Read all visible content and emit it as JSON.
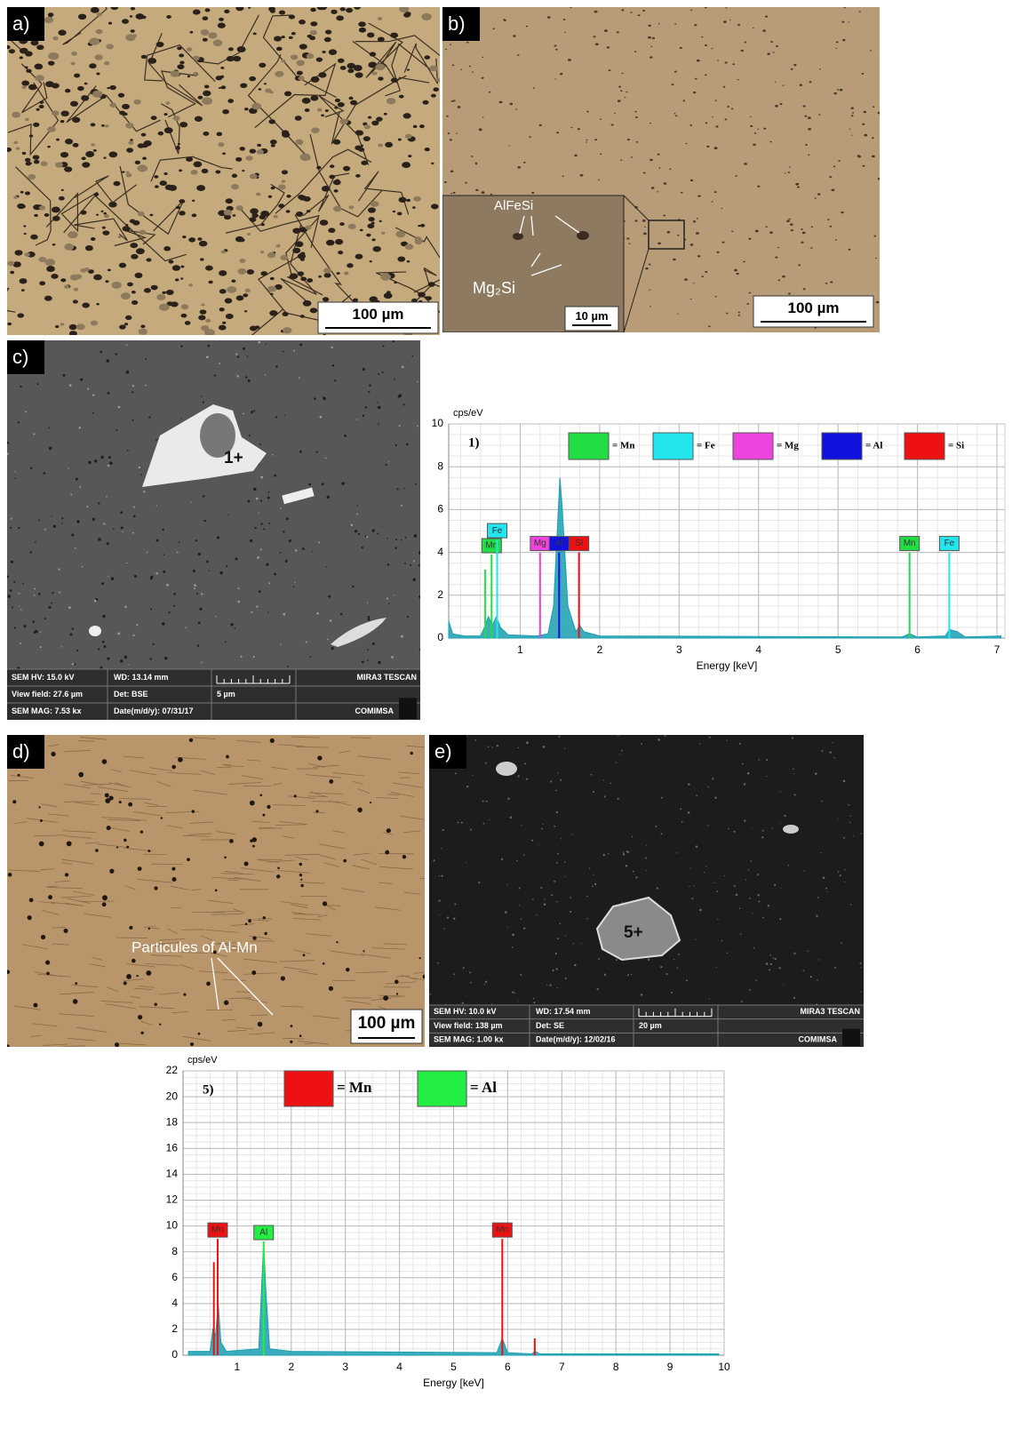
{
  "panels": {
    "a": {
      "label": "a)",
      "scale_bar": "100 µm"
    },
    "b": {
      "label": "b)",
      "scale_bar": "100 µm",
      "inset": {
        "phase_1": "AlFeSi",
        "phase_2": "Mg₂Si",
        "scale_bar": "10 µm"
      }
    },
    "c": {
      "label": "c)",
      "particle": "1+",
      "info": {
        "hv": "SEM HV: 15.0 kV",
        "wd": "WD: 13.14 mm",
        "brand": "MIRA3 TESCAN",
        "view_field": "View field: 27.6 µm",
        "det": "Det: BSE",
        "scale_bar": "5 µm",
        "mag": "SEM MAG: 7.53 kx",
        "date": "Date(m/d/y): 07/31/17",
        "org": "COMIMSA"
      }
    },
    "d": {
      "label": "d)",
      "annotation": "Particules of  Al-Mn",
      "scale_bar": "100 µm"
    },
    "e": {
      "label": "e)",
      "particle": "5+",
      "info": {
        "hv": "SEM HV: 10.0 kV",
        "wd": "WD: 17.54 mm",
        "brand": "MIRA3 TESCAN",
        "view_field": "View field: 138 µm",
        "det": "Det: SE",
        "scale_bar": "20 µm",
        "mag": "SEM MAG: 1.00 kx",
        "date": "Date(m/d/y): 12/02/16",
        "org": "COMIMSA"
      }
    }
  },
  "chart_data": [
    {
      "type": "line",
      "panel_label": "1)",
      "y_label": "cps/eV",
      "x_label": "Energy [keV]",
      "xlim": [
        0.1,
        7.1
      ],
      "xticks": [
        1,
        2,
        3,
        4,
        5,
        6,
        7
      ],
      "ylim": [
        0,
        10
      ],
      "yticks": [
        0,
        2,
        4,
        6,
        8,
        10
      ],
      "grid": true,
      "legend": [
        {
          "name": "= Mn",
          "color": "#22dd44"
        },
        {
          "name": "= Fe",
          "color": "#22e5ee"
        },
        {
          "name": "= Mg",
          "color": "#ee44dd"
        },
        {
          "name": "= Al",
          "color": "#1111dd"
        },
        {
          "name": "= Si",
          "color": "#ee1111"
        }
      ],
      "peaks": [
        {
          "label": "Mn",
          "x": 0.64,
          "value": 3.9,
          "color": "#22dd44"
        },
        {
          "x": 0.56,
          "value": 3.2,
          "color": "#22dd44"
        },
        {
          "label": "Fe",
          "x": 0.71,
          "value": 4.6,
          "color": "#22e5ee"
        },
        {
          "label": "Mg",
          "x": 1.25,
          "value": 4.0,
          "color": "#ee44dd"
        },
        {
          "label": "Al",
          "x": 1.49,
          "value": 4.0,
          "color": "#1111dd"
        },
        {
          "label": "Si",
          "x": 1.74,
          "value": 4.0,
          "color": "#ee1111"
        },
        {
          "label": "Mn",
          "x": 5.9,
          "value": 4.0,
          "color": "#22dd44"
        },
        {
          "label": "Fe",
          "x": 6.4,
          "value": 4.0,
          "color": "#22e5ee"
        }
      ],
      "spectrum": {
        "color": "#1a9fb0",
        "x": [
          0.1,
          0.15,
          0.3,
          0.5,
          0.55,
          0.6,
          0.65,
          0.7,
          0.75,
          0.85,
          1.2,
          1.35,
          1.42,
          1.48,
          1.5,
          1.53,
          1.6,
          1.7,
          1.75,
          1.8,
          2.0,
          5.8,
          5.9,
          6.0,
          6.35,
          6.4,
          6.5,
          6.6,
          7.05
        ],
        "values": [
          0.8,
          0.2,
          0.1,
          0.1,
          0.5,
          1.0,
          0.6,
          1.0,
          0.5,
          0.15,
          0.1,
          0.2,
          1.5,
          6.0,
          7.5,
          6.0,
          1.5,
          0.3,
          0.6,
          0.3,
          0.1,
          0.05,
          0.2,
          0.05,
          0.1,
          0.4,
          0.3,
          0.05,
          0.1
        ]
      }
    },
    {
      "type": "line",
      "panel_label": "5)",
      "y_label": "cps/eV",
      "x_label": "Energy [keV]",
      "xlim": [
        0,
        10
      ],
      "xticks": [
        1,
        2,
        3,
        4,
        5,
        6,
        7,
        8,
        9,
        10
      ],
      "ylim": [
        0,
        22
      ],
      "yticks": [
        0,
        2,
        4,
        6,
        8,
        10,
        12,
        14,
        16,
        18,
        20,
        22
      ],
      "grid": true,
      "legend": [
        {
          "name": "= Mn",
          "color": "#ee1111"
        },
        {
          "name": "= Al",
          "color": "#22ee44"
        }
      ],
      "peaks": [
        {
          "x": 0.57,
          "value": 7.2,
          "color": "#ee1111"
        },
        {
          "label": "Mn",
          "x": 0.64,
          "value": 9.0,
          "color": "#ee1111"
        },
        {
          "label": "Al",
          "x": 1.49,
          "value": 8.8,
          "color": "#22ee44"
        },
        {
          "label": "Mn",
          "x": 5.9,
          "value": 9.0,
          "color": "#ee1111"
        },
        {
          "x": 6.5,
          "value": 1.3,
          "color": "#ee1111"
        }
      ],
      "spectrum": {
        "color": "#1a9fb0",
        "x": [
          0.1,
          0.5,
          0.55,
          0.6,
          0.65,
          0.7,
          0.8,
          1.4,
          1.45,
          1.49,
          1.53,
          1.6,
          2.0,
          5.8,
          5.9,
          6.0,
          6.45,
          6.5,
          6.6,
          9.9
        ],
        "values": [
          0.3,
          0.3,
          2.0,
          1.5,
          4.0,
          1.0,
          0.3,
          0.5,
          5.0,
          8.8,
          5.0,
          0.5,
          0.3,
          0.2,
          1.3,
          0.2,
          0.1,
          0.3,
          0.1,
          0.1
        ]
      }
    }
  ]
}
